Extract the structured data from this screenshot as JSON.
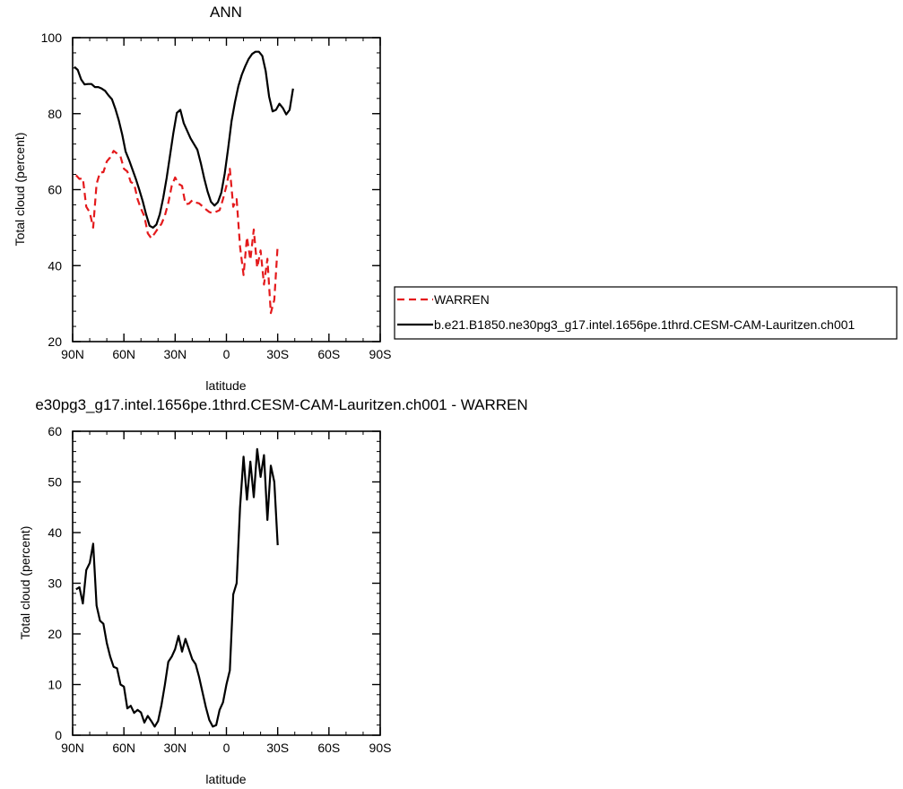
{
  "chart_data": [
    {
      "type": "line",
      "title": "ANN",
      "xlabel": "latitude",
      "ylabel": "Total cloud (percent)",
      "xlim": [
        90,
        -90
      ],
      "ylim": [
        20,
        100
      ],
      "x_ticks": [
        {
          "value": 90,
          "label": "90N"
        },
        {
          "value": 60,
          "label": "60N"
        },
        {
          "value": 30,
          "label": "30N"
        },
        {
          "value": 0,
          "label": "0"
        },
        {
          "value": -30,
          "label": "30S"
        },
        {
          "value": -60,
          "label": "60S"
        },
        {
          "value": -90,
          "label": "90S"
        }
      ],
      "y_ticks": [
        20,
        40,
        60,
        80,
        100
      ],
      "legend_position": "right",
      "series": [
        {
          "name": "WARREN",
          "color": "#e41a1c",
          "dash": "dashed",
          "points": [
            [
              88,
              63.8
            ],
            [
              86,
              62.8
            ],
            [
              84,
              63.0
            ],
            [
              82,
              55.5
            ],
            [
              80,
              54.0
            ],
            [
              78,
              50.0
            ],
            [
              76,
              61.5
            ],
            [
              74,
              64.5
            ],
            [
              72,
              64.6
            ],
            [
              70,
              67.4
            ],
            [
              68,
              68.5
            ],
            [
              66,
              70.2
            ],
            [
              64,
              69.5
            ],
            [
              62,
              68.7
            ],
            [
              60,
              65.5
            ],
            [
              58,
              64.8
            ],
            [
              56,
              62.0
            ],
            [
              54,
              61.5
            ],
            [
              52,
              57.5
            ],
            [
              50,
              55.0
            ],
            [
              48,
              53.0
            ],
            [
              46,
              48.5
            ],
            [
              44,
              47.2
            ],
            [
              42,
              48.5
            ],
            [
              40,
              49.8
            ],
            [
              38,
              51.0
            ],
            [
              36,
              53.2
            ],
            [
              34,
              56.5
            ],
            [
              32,
              61.0
            ],
            [
              30,
              63.2
            ],
            [
              28,
              61.5
            ],
            [
              26,
              61.0
            ],
            [
              24,
              56.2
            ],
            [
              22,
              56.3
            ],
            [
              20,
              57.2
            ],
            [
              18,
              56.6
            ],
            [
              16,
              56.4
            ],
            [
              14,
              55.6
            ],
            [
              12,
              54.8
            ],
            [
              10,
              54.1
            ],
            [
              8,
              53.8
            ],
            [
              6,
              54.2
            ],
            [
              4,
              54.6
            ],
            [
              2,
              57.5
            ],
            [
              0,
              61.0
            ],
            [
              -2,
              65.5
            ],
            [
              -4,
              55.5
            ],
            [
              -6,
              57.5
            ],
            [
              -8,
              45.0
            ],
            [
              -10,
              37.5
            ],
            [
              -12,
              47.5
            ],
            [
              -14,
              41.5
            ],
            [
              -16,
              49.5
            ],
            [
              -18,
              39.5
            ],
            [
              -20,
              44.0
            ],
            [
              -22,
              35.0
            ],
            [
              -24,
              41.8
            ],
            [
              -26,
              27.5
            ],
            [
              -28,
              31.0
            ],
            [
              -30,
              45.5
            ]
          ]
        },
        {
          "name": "b.e21.B1850.ne30pg3_g17.intel.1656pe.1thrd.CESM-CAM-Lauritzen.ch001",
          "color": "#000000",
          "dash": "solid",
          "points": [
            [
              89,
              92.3
            ],
            [
              87,
              91.5
            ],
            [
              85,
              89.0
            ],
            [
              83,
              87.7
            ],
            [
              81,
              87.8
            ],
            [
              79,
              87.8
            ],
            [
              77,
              87.0
            ],
            [
              75,
              87.0
            ],
            [
              73,
              86.6
            ],
            [
              71,
              86.0
            ],
            [
              69,
              84.8
            ],
            [
              67,
              83.8
            ],
            [
              65,
              81.3
            ],
            [
              63,
              78.3
            ],
            [
              61,
              74.5
            ],
            [
              59,
              70.0
            ],
            [
              57,
              67.8
            ],
            [
              55,
              65.3
            ],
            [
              53,
              62.8
            ],
            [
              51,
              60.0
            ],
            [
              49,
              57.0
            ],
            [
              47,
              53.5
            ],
            [
              45,
              50.5
            ],
            [
              43,
              50.0
            ],
            [
              41,
              50.8
            ],
            [
              39,
              53.5
            ],
            [
              37,
              57.8
            ],
            [
              35,
              63.0
            ],
            [
              33,
              69.0
            ],
            [
              31,
              75.0
            ],
            [
              29,
              80.2
            ],
            [
              27,
              81.0
            ],
            [
              25,
              77.5
            ],
            [
              23,
              75.5
            ],
            [
              21,
              73.5
            ],
            [
              19,
              72.0
            ],
            [
              17,
              70.5
            ],
            [
              15,
              67.0
            ],
            [
              13,
              63.0
            ],
            [
              11,
              59.5
            ],
            [
              9,
              56.8
            ],
            [
              7,
              55.8
            ],
            [
              5,
              56.7
            ],
            [
              3,
              59.2
            ],
            [
              1,
              64.2
            ],
            [
              -1,
              70.8
            ],
            [
              -3,
              78.0
            ],
            [
              -5,
              83.0
            ],
            [
              -7,
              87.2
            ],
            [
              -9,
              90.2
            ],
            [
              -11,
              92.5
            ],
            [
              -13,
              94.4
            ],
            [
              -15,
              95.7
            ],
            [
              -17,
              96.3
            ],
            [
              -19,
              96.3
            ],
            [
              -21,
              95.2
            ],
            [
              -23,
              91.2
            ],
            [
              -25,
              84.5
            ],
            [
              -27,
              80.6
            ],
            [
              -29,
              81.0
            ],
            [
              -31,
              82.6
            ],
            [
              -33,
              81.5
            ],
            [
              -35,
              79.8
            ],
            [
              -37,
              81.0
            ],
            [
              -39,
              86.6
            ]
          ]
        }
      ]
    },
    {
      "type": "line",
      "title": "e30pg3_g17.intel.1656pe.1thrd.CESM-CAM-Lauritzen.ch001 - WARREN",
      "xlabel": "latitude",
      "ylabel": "Total cloud (percent)",
      "xlim": [
        90,
        -90
      ],
      "ylim": [
        0,
        60
      ],
      "x_ticks": [
        {
          "value": 90,
          "label": "90N"
        },
        {
          "value": 60,
          "label": "60N"
        },
        {
          "value": 30,
          "label": "30N"
        },
        {
          "value": 0,
          "label": "0"
        },
        {
          "value": -30,
          "label": "30S"
        },
        {
          "value": -60,
          "label": "60S"
        },
        {
          "value": -90,
          "label": "90S"
        }
      ],
      "y_ticks": [
        0,
        10,
        20,
        30,
        40,
        50,
        60
      ],
      "series": [
        {
          "color": "#000000",
          "dash": "solid",
          "points": [
            [
              88,
              28.8
            ],
            [
              86,
              29.2
            ],
            [
              84,
              26.0
            ],
            [
              82,
              32.6
            ],
            [
              80,
              34.0
            ],
            [
              78,
              37.8
            ],
            [
              76,
              25.6
            ],
            [
              74,
              22.6
            ],
            [
              72,
              22.0
            ],
            [
              70,
              18.2
            ],
            [
              68,
              15.5
            ],
            [
              66,
              13.5
            ],
            [
              64,
              13.2
            ],
            [
              62,
              10.0
            ],
            [
              60,
              9.6
            ],
            [
              58,
              5.3
            ],
            [
              56,
              5.8
            ],
            [
              54,
              4.4
            ],
            [
              52,
              5.0
            ],
            [
              50,
              4.5
            ],
            [
              48,
              2.5
            ],
            [
              46,
              3.8
            ],
            [
              44,
              2.8
            ],
            [
              42,
              1.7
            ],
            [
              40,
              2.8
            ],
            [
              38,
              6.0
            ],
            [
              36,
              10.0
            ],
            [
              34,
              14.5
            ],
            [
              32,
              15.5
            ],
            [
              30,
              17.0
            ],
            [
              28,
              19.6
            ],
            [
              26,
              16.5
            ],
            [
              24,
              19.0
            ],
            [
              22,
              17.0
            ],
            [
              20,
              15.0
            ],
            [
              18,
              14.0
            ],
            [
              16,
              11.5
            ],
            [
              14,
              8.5
            ],
            [
              12,
              5.5
            ],
            [
              10,
              3.0
            ],
            [
              8,
              1.7
            ],
            [
              6,
              2.0
            ],
            [
              4,
              5.0
            ],
            [
              2,
              6.5
            ],
            [
              0,
              10.0
            ],
            [
              -2,
              12.8
            ],
            [
              -4,
              27.8
            ],
            [
              -6,
              30.0
            ],
            [
              -8,
              45.0
            ],
            [
              -10,
              55.0
            ],
            [
              -12,
              46.5
            ],
            [
              -14,
              54.0
            ],
            [
              -16,
              47.0
            ],
            [
              -18,
              56.5
            ],
            [
              -20,
              51.0
            ],
            [
              -22,
              55.3
            ],
            [
              -24,
              42.5
            ],
            [
              -26,
              53.2
            ],
            [
              -28,
              50.0
            ],
            [
              -30,
              37.5
            ]
          ]
        }
      ]
    }
  ]
}
